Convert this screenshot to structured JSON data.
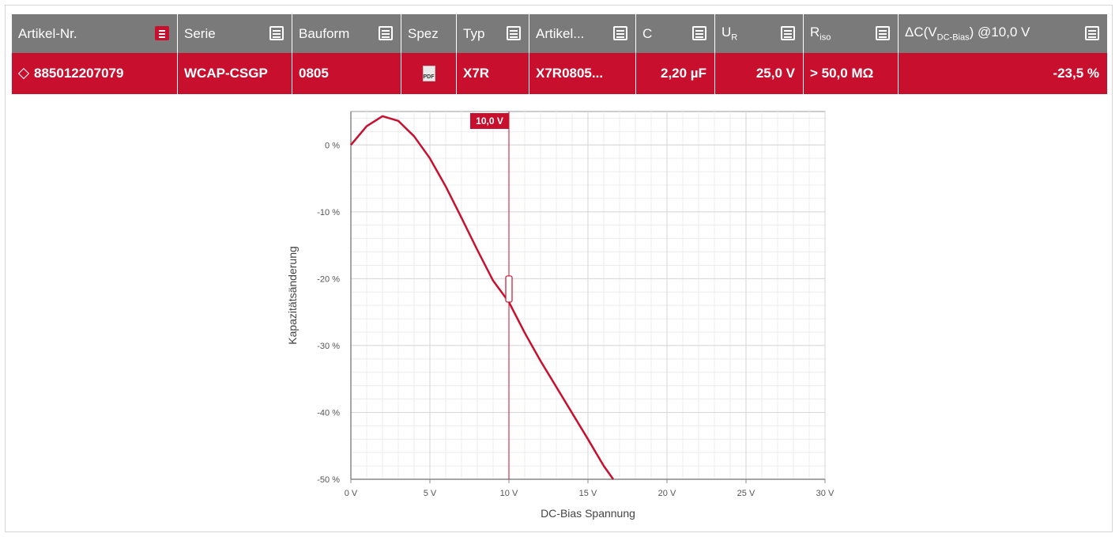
{
  "table": {
    "headers": [
      {
        "key": "artikel",
        "label": "Artikel-Nr."
      },
      {
        "key": "serie",
        "label": "Serie"
      },
      {
        "key": "bauform",
        "label": "Bauform"
      },
      {
        "key": "spez",
        "label": "Spez"
      },
      {
        "key": "typ",
        "label": "Typ"
      },
      {
        "key": "artikel2",
        "label": "Artikel..."
      },
      {
        "key": "c",
        "label": "C"
      },
      {
        "key": "ur_main",
        "label": "U",
        "sub": "R"
      },
      {
        "key": "riso_main",
        "label": "R",
        "sub": "iso"
      },
      {
        "key": "dc",
        "label": "ΔC(V",
        "sub": "DC-Bias",
        "suffix": ") @10,0 V"
      }
    ],
    "row": {
      "artikel": "885012207079",
      "serie": "WCAP-CSGP",
      "bauform": "0805",
      "spez_icon": "pdf-icon",
      "spez_icon_text": "PDF",
      "typ": "X7R",
      "artikel2": "X7R0805...",
      "c": "2,20 µF",
      "ur": "25,0 V",
      "riso": "> 50,0 MΩ",
      "dc": "-23,5 %"
    },
    "colors": {
      "header": "#7a7a7a",
      "row": "#c8102e"
    }
  },
  "chart_data": {
    "type": "line",
    "xlabel": "DC-Bias Spannung",
    "ylabel": "Kapazitätsänderung",
    "xlim": [
      0,
      30
    ],
    "ylim": [
      -50,
      5
    ],
    "x_ticks": [
      0,
      5,
      10,
      15,
      20,
      25,
      30
    ],
    "x_tick_labels": [
      "0 V",
      "5 V",
      "10 V",
      "15 V",
      "20 V",
      "25 V",
      "30 V"
    ],
    "y_ticks": [
      0,
      -10,
      -20,
      -30,
      -40,
      -50
    ],
    "y_tick_labels": [
      "0 %",
      "-10 %",
      "-20 %",
      "-30 %",
      "-40 %",
      "-50 %"
    ],
    "grid": true,
    "marker": {
      "x": 10,
      "label": "10,0 V"
    },
    "series": [
      {
        "color": "#c8102e",
        "x": [
          0,
          1,
          2,
          3,
          4,
          5,
          6,
          7,
          8,
          9,
          10,
          11,
          12,
          13,
          14,
          15,
          16,
          16.6
        ],
        "y": [
          0,
          2.8,
          4.3,
          3.6,
          1.3,
          -2.0,
          -6.2,
          -10.9,
          -15.7,
          -20.3,
          -23.5,
          -28.1,
          -32.3,
          -36.2,
          -40.1,
          -44.0,
          -48.0,
          -50.0
        ]
      }
    ]
  }
}
